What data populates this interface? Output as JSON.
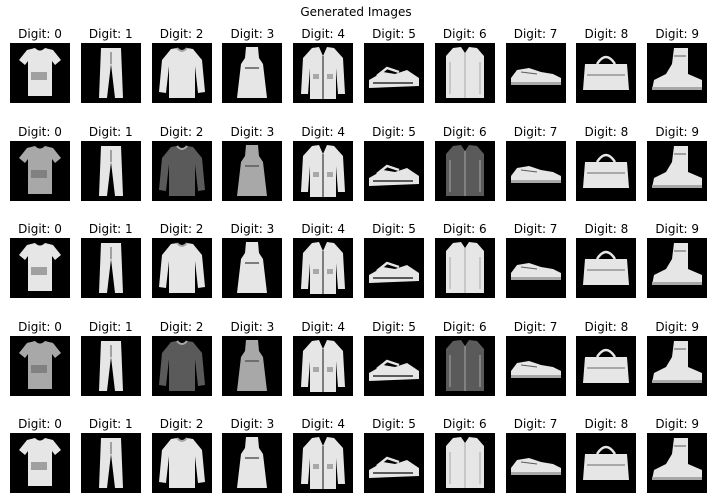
{
  "figure": {
    "title": "Generated Images",
    "cell_label_prefix": "Digit: ",
    "digits": [
      0,
      1,
      2,
      3,
      4,
      5,
      6,
      7,
      8,
      9
    ],
    "row_count": 5
  },
  "items": [
    {
      "digit": 0,
      "icon": "tshirt"
    },
    {
      "digit": 1,
      "icon": "trouser"
    },
    {
      "digit": 2,
      "icon": "pullover"
    },
    {
      "digit": 3,
      "icon": "dress"
    },
    {
      "digit": 4,
      "icon": "coat"
    },
    {
      "digit": 5,
      "icon": "sandal"
    },
    {
      "digit": 6,
      "icon": "shirt"
    },
    {
      "digit": 7,
      "icon": "sneaker"
    },
    {
      "digit": 8,
      "icon": "bag"
    },
    {
      "digit": 9,
      "icon": "ankle-boot"
    }
  ],
  "colors": {
    "background": "#000000",
    "garment_light": "#e6e6e6",
    "garment_mid": "#a8a8a8",
    "garment_dark": "#5a5a5a"
  }
}
